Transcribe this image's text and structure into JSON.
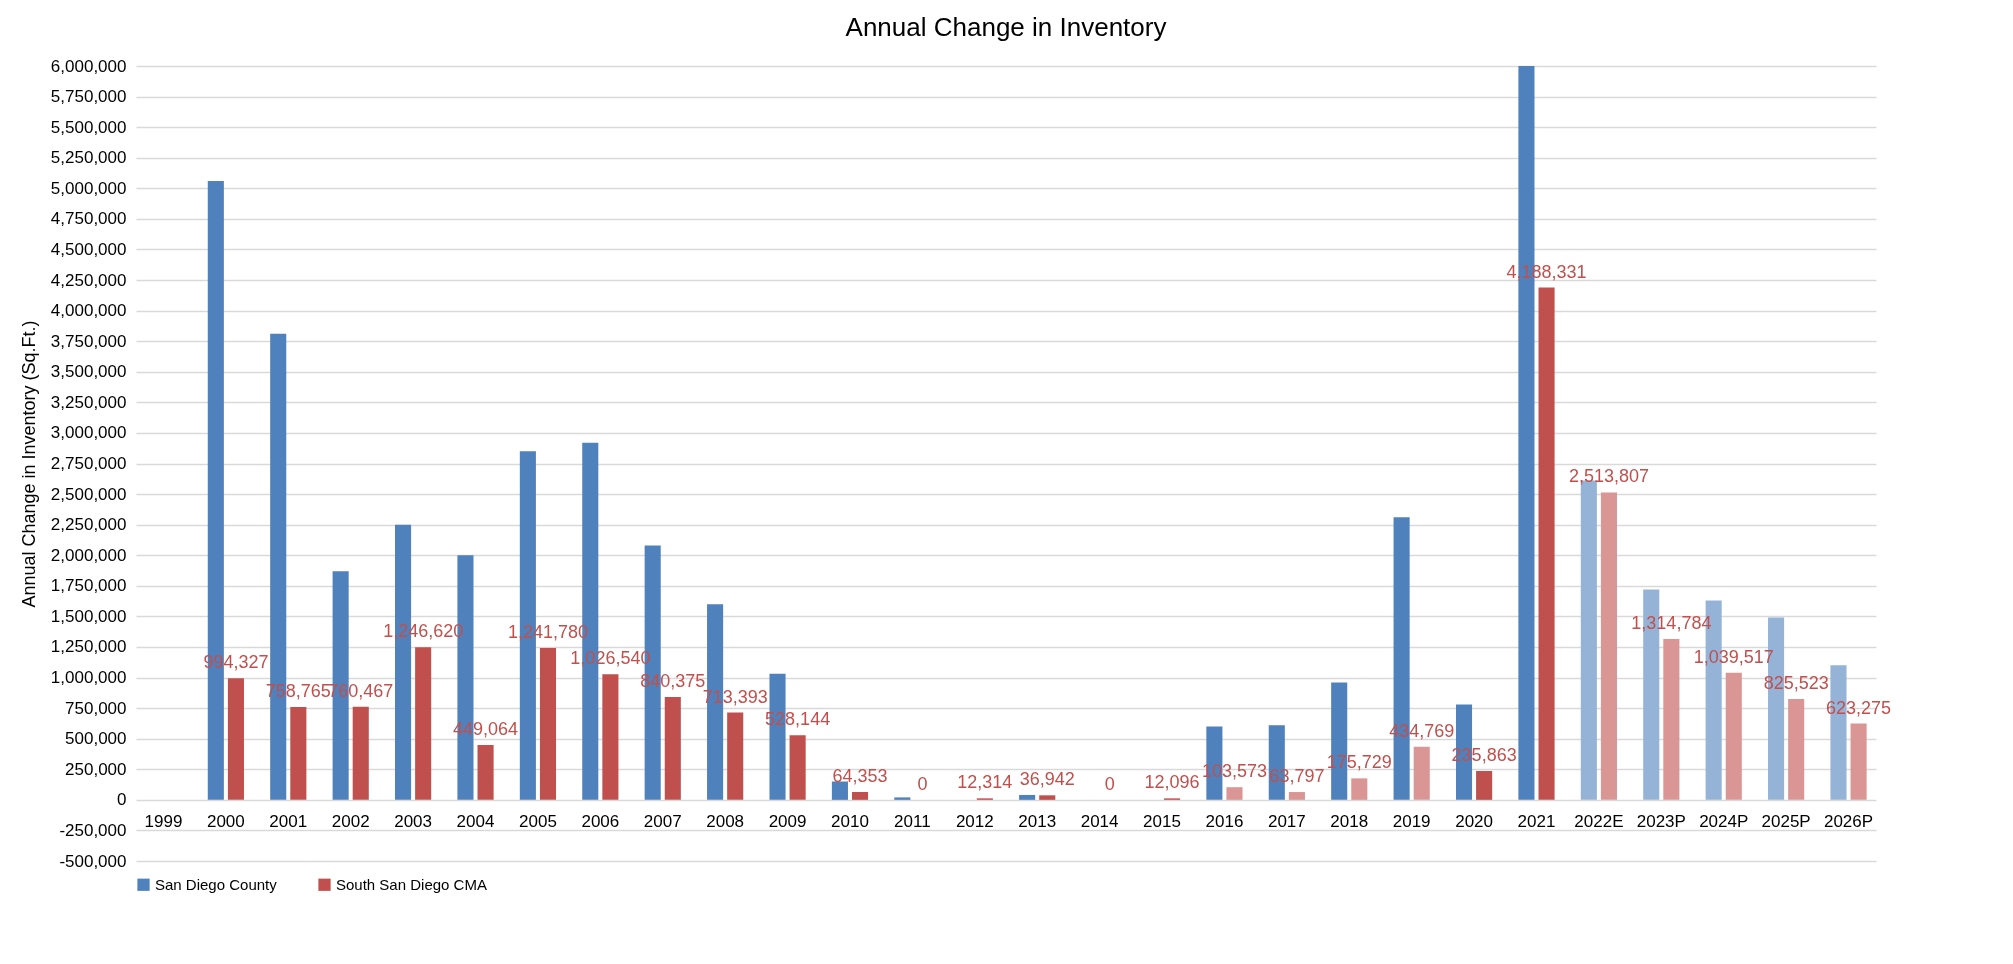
{
  "chart_data": {
    "type": "bar",
    "title": "Annual Change in Inventory",
    "ylabel": "Annual Change in Inventory (Sq.Ft.)",
    "categories": [
      "1999",
      "2000",
      "2001",
      "2002",
      "2003",
      "2004",
      "2005",
      "2006",
      "2007",
      "2008",
      "2009",
      "2010",
      "2011",
      "2012",
      "2013",
      "2014",
      "2015",
      "2016",
      "2017",
      "2018",
      "2019",
      "2020",
      "2021",
      "2022E",
      "2023P",
      "2024P",
      "2025P",
      "2026P"
    ],
    "series": [
      {
        "name": "San Diego County",
        "color": "#4f81bd",
        "colors": [
          "#4f81bd",
          "#4f81bd",
          "#4f81bd",
          "#4f81bd",
          "#4f81bd",
          "#4f81bd",
          "#4f81bd",
          "#4f81bd",
          "#4f81bd",
          "#4f81bd",
          "#4f81bd",
          "#4f81bd",
          "#4f81bd",
          "#4f81bd",
          "#4f81bd",
          "#4f81bd",
          "#4f81bd",
          "#4f81bd",
          "#4f81bd",
          "#4f81bd",
          "#4f81bd",
          "#4f81bd",
          "#4f81bd",
          "#95b3d7",
          "#95b3d7",
          "#95b3d7",
          "#95b3d7",
          "#95b3d7"
        ],
        "values": [
          null,
          5060000,
          3810000,
          1870000,
          2250000,
          2000000,
          2850000,
          2920000,
          2080000,
          1600000,
          1030000,
          150000,
          20000,
          null,
          40000,
          null,
          null,
          600000,
          610000,
          960000,
          2310000,
          780000,
          6000000,
          2610000,
          1720000,
          1630000,
          1490000,
          1100000
        ]
      },
      {
        "name": "South San Diego CMA",
        "color": "#c0504d",
        "colors": [
          "#c0504d",
          "#c0504d",
          "#c0504d",
          "#c0504d",
          "#c0504d",
          "#c0504d",
          "#c0504d",
          "#c0504d",
          "#c0504d",
          "#c0504d",
          "#c0504d",
          "#c0504d",
          "#c0504d",
          "#c0504d",
          "#c0504d",
          "#c0504d",
          "#c0504d",
          "#d99694",
          "#d99694",
          "#d99694",
          "#d99694",
          "#c0504d",
          "#c0504d",
          "#d99694",
          "#d99694",
          "#d99694",
          "#d99694",
          "#d99694"
        ],
        "values": [
          null,
          994327,
          758765,
          760467,
          1246620,
          449064,
          1241780,
          1026540,
          840375,
          713393,
          528144,
          64353,
          0,
          12314,
          36942,
          0,
          12096,
          103573,
          63797,
          175729,
          434769,
          235863,
          4188331,
          2513807,
          1314784,
          1039517,
          825523,
          623275
        ],
        "value_labels": [
          null,
          "994,327",
          "758,765",
          "760,467",
          "1,246,620",
          "449,064",
          "1,241,780",
          "1,026,540",
          "840,375",
          "713,393",
          "528,144",
          "64,353",
          "0",
          "12,314",
          "36,942",
          "0",
          "12,096",
          "103,573",
          "63,797",
          "175,729",
          "434,769",
          "235,863",
          "4,188,331",
          "2,513,807",
          "1,314,784",
          "1,039,517",
          "825,523",
          "623,275"
        ]
      }
    ],
    "ylim": [
      -500000,
      6000000
    ],
    "yticks": [
      {
        "value": -500000,
        "label": "-500,000"
      },
      {
        "value": -250000,
        "label": "-250,000"
      },
      0,
      {
        "value": 250000,
        "label": "250,000"
      },
      {
        "value": 500000,
        "label": "500,000"
      },
      {
        "value": 750000,
        "label": "750,000"
      },
      {
        "value": 1000000,
        "label": "1,000,000"
      },
      {
        "value": 1250000,
        "label": "1,250,000"
      },
      {
        "value": 1500000,
        "label": "1,500,000"
      },
      {
        "value": 1750000,
        "label": "1,750,000"
      },
      {
        "value": 2000000,
        "label": "2,000,000"
      },
      {
        "value": 2250000,
        "label": "2,250,000"
      },
      {
        "value": 2500000,
        "label": "2,500,000"
      },
      {
        "value": 2750000,
        "label": "2,750,000"
      },
      {
        "value": 3000000,
        "label": "3,000,000"
      },
      {
        "value": 3250000,
        "label": "3,250,000"
      },
      {
        "value": 3500000,
        "label": "3,500,000"
      },
      {
        "value": 3750000,
        "label": "3,750,000"
      },
      {
        "value": 4000000,
        "label": "4,000,000"
      },
      {
        "value": 4250000,
        "label": "4,250,000"
      },
      {
        "value": 4500000,
        "label": "4,500,000"
      },
      {
        "value": 4750000,
        "label": "4,750,000"
      },
      {
        "value": 5000000,
        "label": "5,000,000"
      },
      {
        "value": 5250000,
        "label": "5,250,000"
      },
      {
        "value": 5500000,
        "label": "5,500,000"
      },
      {
        "value": 5750000,
        "label": "5,750,000"
      },
      {
        "value": 6000000,
        "label": "6,000,000"
      }
    ],
    "grid": "y",
    "legend": "bottom"
  }
}
